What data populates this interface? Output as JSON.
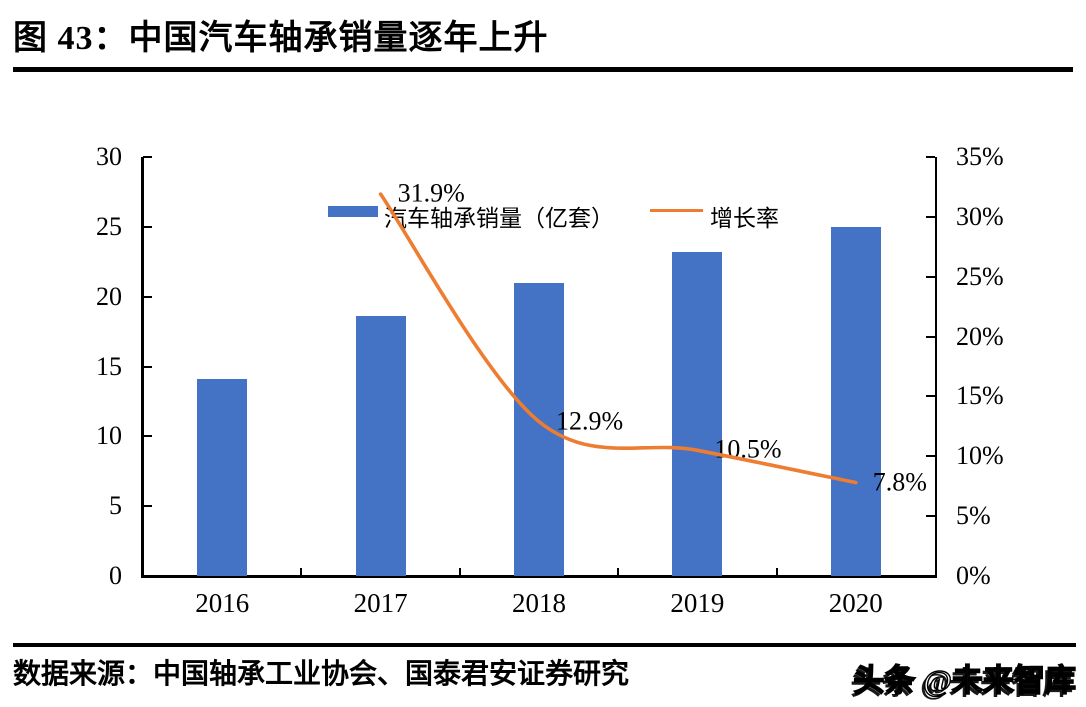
{
  "figure": {
    "title": "图 43：中国汽车轴承销量逐年上升",
    "source": "数据来源：中国轴承工业协会、国泰君安证券研究",
    "watermark": "头条 @未来智库"
  },
  "colors": {
    "bar": "#4472C4",
    "line": "#ED7D31",
    "axis": "#000000"
  },
  "chart_data": {
    "type": "combo-bar-line",
    "categories": [
      "2016",
      "2017",
      "2018",
      "2019",
      "2020"
    ],
    "series": [
      {
        "name": "汽车轴承销量（亿套）",
        "type": "bar",
        "axis": "left",
        "color": "#4472C4",
        "values": [
          14.1,
          18.6,
          21.0,
          23.2,
          25.0
        ]
      },
      {
        "name": "增长率",
        "type": "line",
        "axis": "right",
        "color": "#ED7D31",
        "values": [
          null,
          31.9,
          12.9,
          10.5,
          7.8
        ],
        "point_labels": [
          null,
          "31.9%",
          "12.9%",
          "10.5%",
          "7.8%"
        ]
      }
    ],
    "left_axis": {
      "min": 0,
      "max": 30,
      "step": 5,
      "tick_labels": [
        "0",
        "5",
        "10",
        "15",
        "20",
        "25",
        "30"
      ]
    },
    "right_axis": {
      "min": 0,
      "max": 35,
      "step": 5,
      "tick_labels": [
        "0%",
        "5%",
        "10%",
        "15%",
        "20%",
        "25%",
        "30%",
        "35%"
      ]
    },
    "legend_position": "top",
    "grid": false
  }
}
